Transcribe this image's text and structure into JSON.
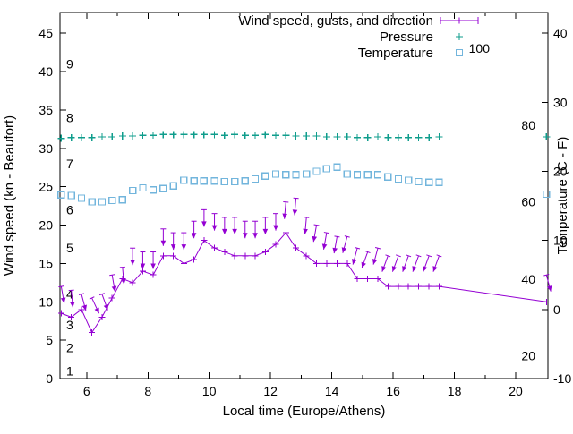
{
  "chart_data": {
    "type": "line",
    "xlabel": "Local time (Europe/Athens)",
    "ylabel_left": "Wind speed (kn - Beaufort)",
    "ylabel_right": "Temperature (C - F)",
    "x_range": [
      5.13,
      21.05
    ],
    "y_left_range": [
      0,
      47.7
    ],
    "y_right_range": [
      -10,
      43
    ],
    "x_ticks": [
      6,
      8,
      10,
      12,
      14,
      16,
      18,
      20
    ],
    "x_minor_ticks": [
      7,
      9,
      11,
      13,
      15,
      17,
      19
    ],
    "y_left_ticks": [
      0,
      5,
      10,
      15,
      20,
      25,
      30,
      35,
      40,
      45
    ],
    "y_right_ticks": [
      -10,
      0,
      10,
      20,
      30,
      40
    ],
    "grid": false,
    "legend_position": "top-right",
    "beaufort_scale_labels": [
      {
        "label": "1",
        "kn": 1
      },
      {
        "label": "2",
        "kn": 4
      },
      {
        "label": "3",
        "kn": 7
      },
      {
        "label": "4",
        "kn": 11
      },
      {
        "label": "5",
        "kn": 17
      },
      {
        "label": "6",
        "kn": 22
      },
      {
        "label": "7",
        "kn": 28
      },
      {
        "label": "8",
        "kn": 34
      },
      {
        "label": "9",
        "kn": 41
      }
    ],
    "fahrenheit_scale_labels": [
      {
        "label": "20",
        "c": -6.7
      },
      {
        "label": "40",
        "c": 4.4
      },
      {
        "label": "60",
        "c": 15.6
      },
      {
        "label": "80",
        "c": 26.7
      },
      {
        "label": "100",
        "c": 37.8
      }
    ],
    "legend": [
      {
        "label": "Wind speed, gusts, and direction",
        "color": "#9400d3",
        "marker": "errorbar"
      },
      {
        "label": "Pressure",
        "color": "#0f9d8c",
        "marker": "plus"
      },
      {
        "label": "Temperature",
        "color": "#72b5dc",
        "marker": "square"
      }
    ],
    "series": {
      "time": [
        5.17,
        5.5,
        5.83,
        6.17,
        6.5,
        6.83,
        7.17,
        7.5,
        7.83,
        8.17,
        8.5,
        8.83,
        9.17,
        9.5,
        9.83,
        10.17,
        10.5,
        10.83,
        11.17,
        11.5,
        11.83,
        12.17,
        12.5,
        12.83,
        13.17,
        13.5,
        13.83,
        14.17,
        14.5,
        14.83,
        15.17,
        15.5,
        15.83,
        16.17,
        16.5,
        16.83,
        17.17,
        17.5,
        21.0
      ],
      "wind_speed_kn": [
        8.5,
        8,
        9,
        6,
        8,
        10.5,
        13,
        12.5,
        14,
        13.5,
        16,
        16,
        15,
        15.5,
        18,
        17,
        16.5,
        16,
        16,
        16,
        16.5,
        17.5,
        19,
        17,
        16,
        15,
        15,
        15,
        15,
        13,
        13,
        13,
        12,
        12,
        12,
        12,
        12,
        12,
        10
      ],
      "gust_kn": [
        12,
        11.5,
        11,
        10.5,
        11,
        13.5,
        14.5,
        17,
        16.5,
        16.5,
        19.5,
        19,
        19,
        20.5,
        22,
        21.5,
        21,
        21,
        20.5,
        20.5,
        21,
        21.5,
        23,
        23.5,
        21,
        20,
        19,
        18.5,
        18.5,
        17,
        16.5,
        17,
        16,
        16,
        16,
        16,
        16,
        16,
        13.5
      ],
      "gust_dir_deg": [
        10,
        5,
        15,
        25,
        20,
        10,
        5,
        0,
        0,
        0,
        0,
        0,
        0,
        0,
        0,
        0,
        0,
        0,
        0,
        0,
        0,
        0,
        -5,
        -5,
        -5,
        -10,
        -10,
        -10,
        -15,
        -15,
        -20,
        -15,
        -20,
        -20,
        -20,
        -20,
        -20,
        -20,
        15
      ],
      "pressure_plot": [
        31.3,
        31.4,
        31.4,
        31.4,
        31.5,
        31.5,
        31.6,
        31.6,
        31.7,
        31.7,
        31.8,
        31.8,
        31.8,
        31.8,
        31.8,
        31.8,
        31.7,
        31.8,
        31.7,
        31.7,
        31.8,
        31.7,
        31.7,
        31.6,
        31.6,
        31.6,
        31.5,
        31.5,
        31.5,
        31.4,
        31.4,
        31.5,
        31.4,
        31.4,
        31.4,
        31.4,
        31.4,
        31.5,
        31.5
      ],
      "temperature_c": [
        16.6,
        16.5,
        16.1,
        15.6,
        15.6,
        15.8,
        15.9,
        17.2,
        17.6,
        17.3,
        17.5,
        17.9,
        18.7,
        18.6,
        18.6,
        18.6,
        18.5,
        18.5,
        18.6,
        18.9,
        19.3,
        19.6,
        19.5,
        19.5,
        19.6,
        20.0,
        20.4,
        20.6,
        19.6,
        19.5,
        19.5,
        19.5,
        19.2,
        18.9,
        18.7,
        18.5,
        18.4,
        18.4,
        16.7
      ]
    }
  }
}
